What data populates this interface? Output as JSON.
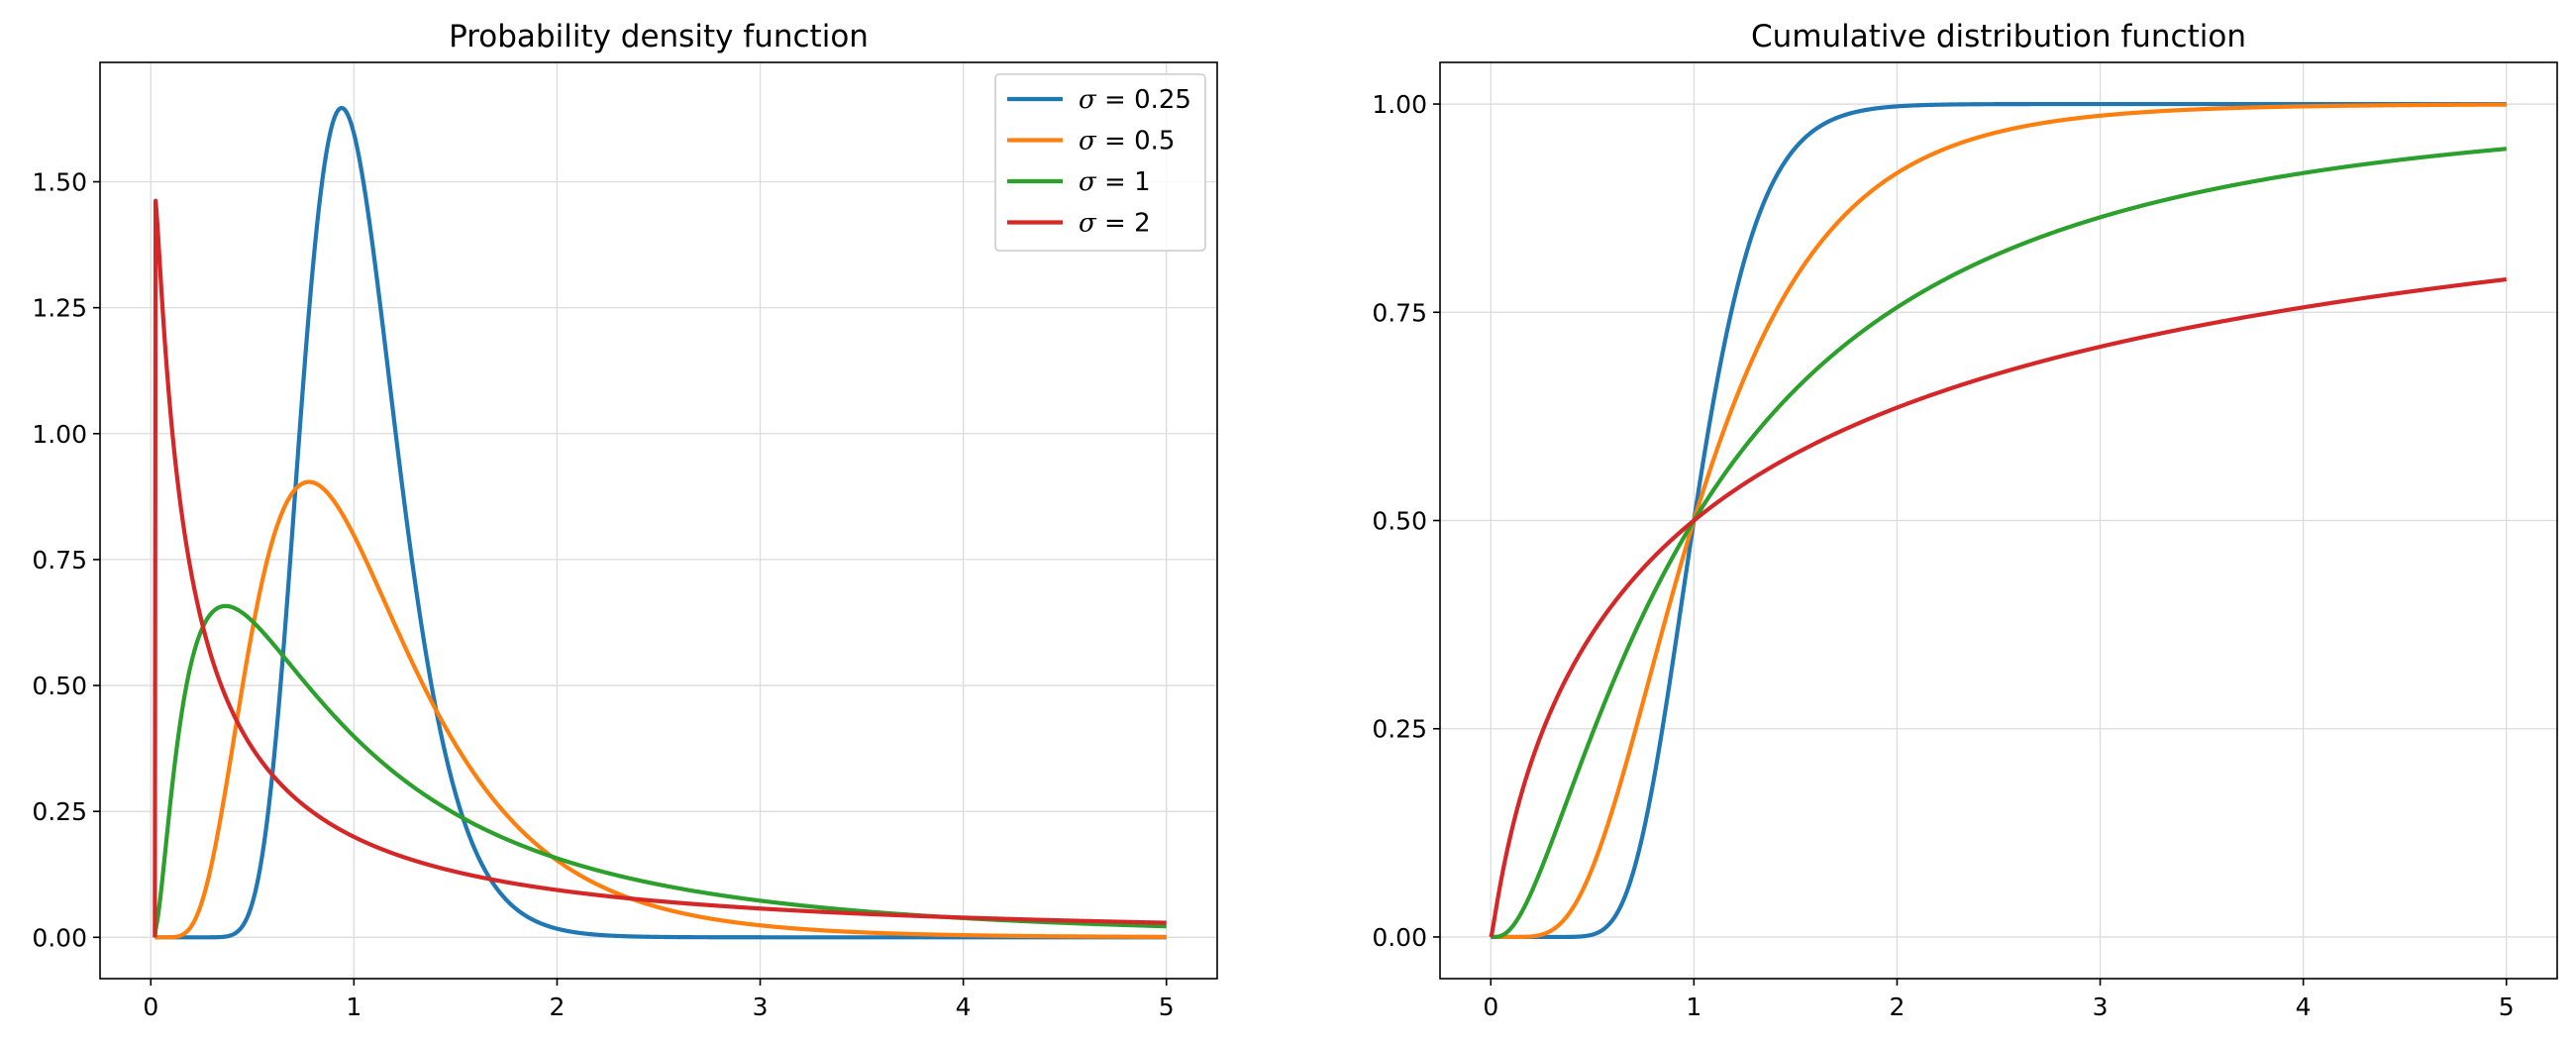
{
  "chart_data": [
    {
      "type": "line",
      "title": "Probability density function",
      "xlabel": "",
      "ylabel": "",
      "xlim": [
        -0.25,
        5.25
      ],
      "ylim": [
        -0.082,
        1.737
      ],
      "xticks": [
        0,
        1,
        2,
        3,
        4,
        5
      ],
      "xtick_labels": [
        "0",
        "1",
        "2",
        "3",
        "4",
        "5"
      ],
      "yticks": [
        0.0,
        0.25,
        0.5,
        0.75,
        1.0,
        1.25,
        1.5
      ],
      "ytick_labels": [
        "0.00",
        "0.25",
        "0.50",
        "0.75",
        "1.00",
        "1.25",
        "1.50"
      ],
      "grid": true,
      "legend": "top-right",
      "function": "lognormal_pdf",
      "x_range": [
        0.02,
        5
      ],
      "series": [
        {
          "name": "σ = 0.25",
          "sigma": 0.25,
          "color": "#1f77b4"
        },
        {
          "name": "σ = 0.5",
          "sigma": 0.5,
          "color": "#ff7f0e"
        },
        {
          "name": "σ = 1",
          "sigma": 1,
          "color": "#2ca02c"
        },
        {
          "name": "σ = 2",
          "sigma": 2,
          "color": "#d62728"
        }
      ]
    },
    {
      "type": "line",
      "title": "Cumulative distribution function",
      "xlabel": "",
      "ylabel": "",
      "xlim": [
        -0.25,
        5.25
      ],
      "ylim": [
        -0.05,
        1.05
      ],
      "xticks": [
        0,
        1,
        2,
        3,
        4,
        5
      ],
      "xtick_labels": [
        "0",
        "1",
        "2",
        "3",
        "4",
        "5"
      ],
      "yticks": [
        0.0,
        0.25,
        0.5,
        0.75,
        1.0
      ],
      "ytick_labels": [
        "0.00",
        "0.25",
        "0.50",
        "0.75",
        "1.00"
      ],
      "grid": true,
      "legend": "none",
      "function": "lognormal_cdf",
      "x_range": [
        0,
        5
      ],
      "series": [
        {
          "sigma": 0.25,
          "color": "#1f77b4"
        },
        {
          "sigma": 0.5,
          "color": "#ff7f0e"
        },
        {
          "sigma": 1,
          "color": "#2ca02c"
        },
        {
          "sigma": 2,
          "color": "#d62728"
        }
      ]
    }
  ]
}
